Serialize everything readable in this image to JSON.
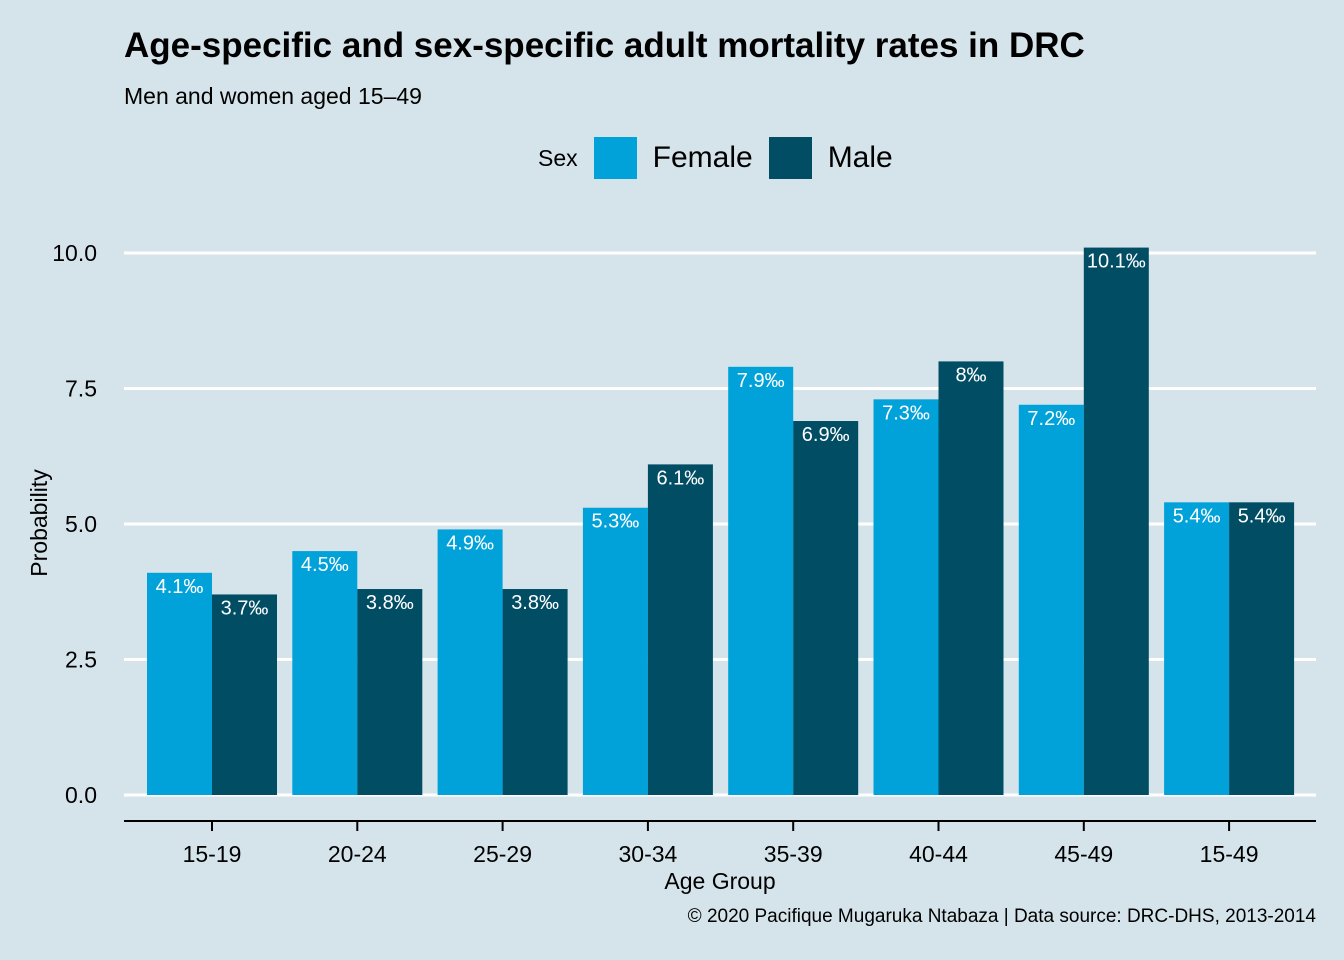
{
  "chart_data": {
    "type": "bar",
    "title": "Age-specific and sex-specific adult mortality rates in DRC",
    "subtitle": "Men and women aged 15–49",
    "xlabel": "Age Group",
    "ylabel": "Probability",
    "caption": "© 2020 Pacifique Mugaruka Ntabaza | Data source: DRC-DHS, 2013-2014",
    "legend_title": "Sex",
    "legend_position": "top",
    "grid": "horizontal",
    "categories": [
      "15-19",
      "20-24",
      "25-29",
      "30-34",
      "35-39",
      "40-44",
      "45-49",
      "15-49"
    ],
    "series": [
      {
        "name": "Female",
        "color": "#00a2d9",
        "values": [
          4.1,
          4.5,
          4.9,
          5.3,
          7.9,
          7.3,
          7.2,
          5.4
        ],
        "labels": [
          "4.1‰",
          "4.5‰",
          "4.9‰",
          "5.3‰",
          "7.9‰",
          "7.3‰",
          "7.2‰",
          "5.4‰"
        ]
      },
      {
        "name": "Male",
        "color": "#014d64",
        "values": [
          3.7,
          3.8,
          3.8,
          6.1,
          6.9,
          8.0,
          10.1,
          5.4
        ],
        "labels": [
          "3.7‰",
          "3.8‰",
          "3.8‰",
          "6.1‰",
          "6.9‰",
          "8‰",
          "10.1‰",
          "5.4‰"
        ]
      }
    ],
    "ylim": [
      0,
      10.1
    ],
    "yticks": [
      0,
      2.5,
      5,
      7.5,
      10
    ],
    "ytick_labels": [
      "0.0",
      "2.5",
      "5.0",
      "7.5",
      "10.0"
    ]
  }
}
